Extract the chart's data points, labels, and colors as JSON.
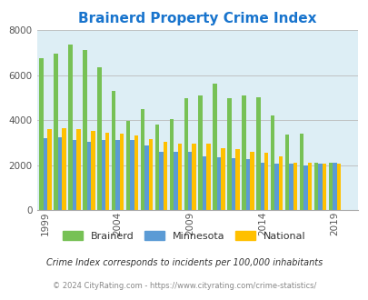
{
  "title": "Brainerd Property Crime Index",
  "title_color": "#1874cd",
  "years": [
    1999,
    2000,
    2001,
    2002,
    2003,
    2004,
    2005,
    2006,
    2007,
    2008,
    2009,
    2010,
    2011,
    2012,
    2013,
    2014,
    2015,
    2016,
    2017,
    2018,
    2019,
    2020
  ],
  "brainerd": [
    6750,
    6950,
    7350,
    7100,
    6350,
    5300,
    3950,
    4500,
    3800,
    4050,
    4950,
    5100,
    5600,
    4950,
    5100,
    5000,
    4200,
    3350,
    3400,
    2100,
    2100,
    0
  ],
  "minnesota": [
    3200,
    3250,
    3100,
    3020,
    3100,
    3100,
    3100,
    2850,
    2600,
    2600,
    2600,
    2400,
    2350,
    2300,
    2250,
    2100,
    2050,
    2050,
    2000,
    2050,
    2100,
    0
  ],
  "national": [
    3600,
    3650,
    3580,
    3500,
    3450,
    3400,
    3300,
    3150,
    3050,
    2950,
    2950,
    2950,
    2750,
    2700,
    2600,
    2550,
    2400,
    2100,
    2100,
    2050,
    2050,
    0
  ],
  "bar_colors": [
    "#77c155",
    "#5b9bd5",
    "#ffc000"
  ],
  "bg_color": "#ddeef5",
  "ylim": [
    0,
    8000
  ],
  "yticks": [
    0,
    2000,
    4000,
    6000,
    8000
  ],
  "xlabel_years": [
    1999,
    2004,
    2009,
    2014,
    2019
  ],
  "legend_labels": [
    "Brainerd",
    "Minnesota",
    "National"
  ],
  "footnote1": "Crime Index corresponds to incidents per 100,000 inhabitants",
  "footnote2": "© 2024 CityRating.com - https://www.cityrating.com/crime-statistics/",
  "grid_color": "#bbbbbb",
  "bar_width": 0.28
}
